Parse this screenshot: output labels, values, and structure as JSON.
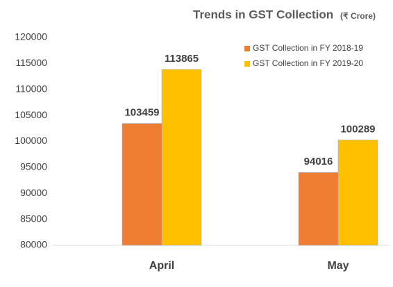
{
  "chart_data": {
    "type": "bar",
    "title": "Trends in GST Collection",
    "subtitle": "(₹ Crore)",
    "categories": [
      "April",
      "May"
    ],
    "series": [
      {
        "name": "GST Collection in FY 2018-19",
        "color": "#ED7D31",
        "values": [
          103459,
          94016
        ]
      },
      {
        "name": "GST Collection in FY 2019-20",
        "color": "#FFC000",
        "values": [
          113865,
          100289
        ]
      }
    ],
    "ylim": [
      80000,
      120000
    ],
    "yticks": [
      80000,
      85000,
      90000,
      95000,
      100000,
      105000,
      110000,
      115000,
      120000
    ],
    "grid": false,
    "legend": "upper right",
    "data_labels": true
  }
}
